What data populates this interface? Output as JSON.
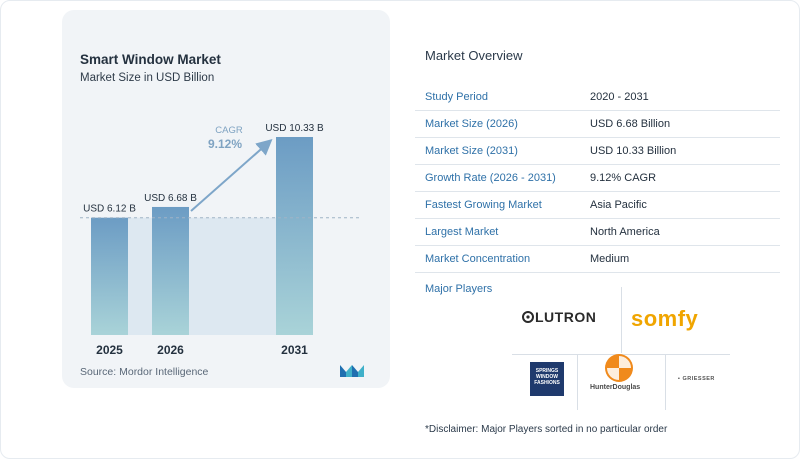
{
  "chart_data": {
    "type": "bar",
    "title": "Smart Window Market",
    "subtitle": "Market Size in USD Billion",
    "categories": [
      "2025",
      "2026",
      "2031"
    ],
    "values": [
      6.12,
      6.68,
      10.33
    ],
    "data_labels": [
      "USD 6.12 B",
      "USD 6.68 B",
      "USD 10.33 B"
    ],
    "annotation": {
      "label": "CAGR",
      "value": "9.12%"
    },
    "ylim": [
      0,
      10.33
    ],
    "grid": false,
    "legend": "none",
    "colors": {
      "bar_top": "#6c9cc4",
      "bar_bottom": "#a9d3d8",
      "shade": "#dde8f1",
      "arrow": "#7ea6c9",
      "cagr": "#7fa3c2"
    }
  },
  "source": "Source:  Mordor Intelligence",
  "logo_icon": "mordor-logo-icon",
  "overview": {
    "title": "Market Overview",
    "rows": [
      {
        "label": "Study Period",
        "value": "2020 - 2031"
      },
      {
        "label": "Market Size (2026)",
        "value": "USD 6.68 Billion"
      },
      {
        "label": "Market Size (2031)",
        "value": "USD 10.33 Billion"
      },
      {
        "label": "Growth Rate (2026 - 2031)",
        "value": "9.12% CAGR"
      },
      {
        "label": "Fastest Growing Market",
        "value": "Asia Pacific"
      },
      {
        "label": "Largest Market",
        "value": "North America"
      },
      {
        "label": "Market Concentration",
        "value": "Medium"
      }
    ]
  },
  "players": {
    "title": "Major Players",
    "logos": [
      "LUTRON",
      "somfy",
      "SPRINGS WINDOW FASHIONS",
      "HunterDouglas",
      "GRIESSER"
    ]
  },
  "disclaimer": "*Disclaimer: Major Players sorted in no particular order"
}
